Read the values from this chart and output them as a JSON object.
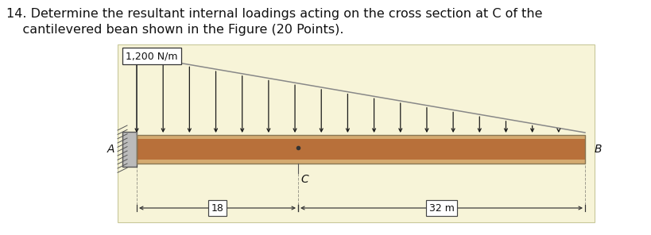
{
  "title_line1": "14. Determine the resultant internal loadings acting on the cross section at C of the",
  "title_line2": "    cantilevered bean shown in the Figure (20 Points).",
  "fig_bg": "#ffffff",
  "diagram_bg": "#f7f4d8",
  "beam_mid_color": "#b8703a",
  "beam_strip_color": "#d4aa70",
  "beam_outline_color": "#887755",
  "load_label": "1,200 N/m",
  "dim_left": "18",
  "dim_right": "32 m",
  "label_A": "A",
  "label_B": "B",
  "label_C": "C",
  "arrow_color": "#1a1a1a",
  "load_line_color": "#777777",
  "num_arrows": 18,
  "title_fontsize": 11.5,
  "label_fontsize": 10
}
